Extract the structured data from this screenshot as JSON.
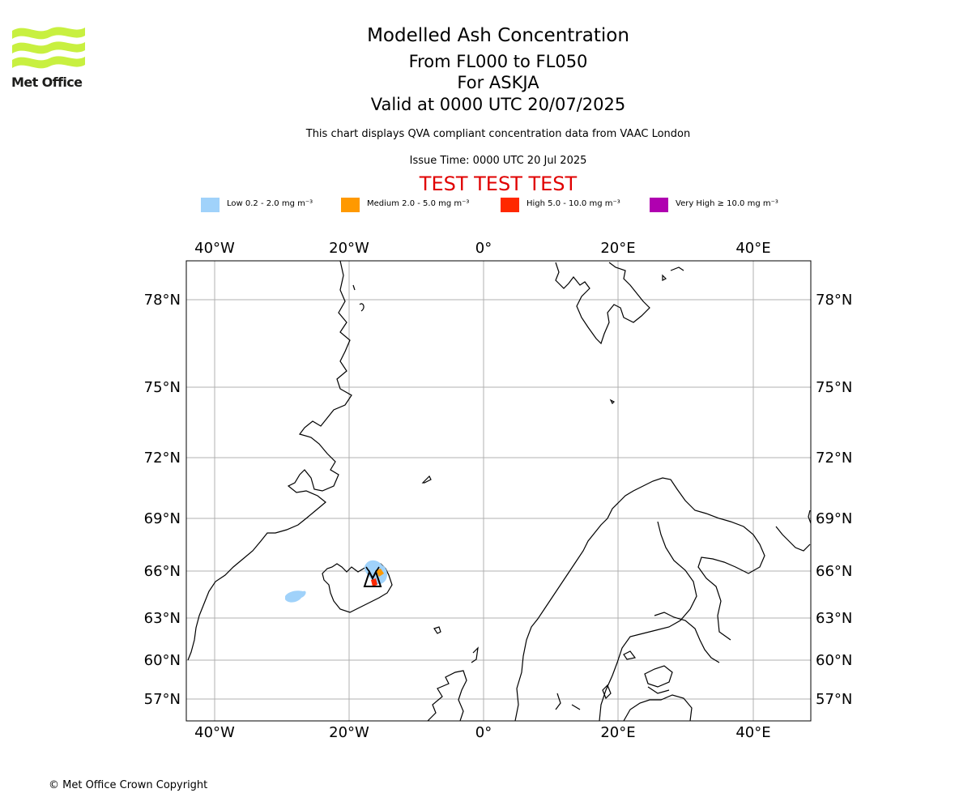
{
  "logo": {
    "text": "Met Office",
    "icon": "met-office-wave-icon",
    "color": "#c8f040"
  },
  "header": {
    "title": "Modelled Ash Concentration",
    "line2": "From FL000 to FL050",
    "line3": "For ASKJA",
    "line4": "Valid at 0000 UTC 20/07/2025",
    "description": "This chart displays QVA compliant concentration data from VAAC London",
    "issue_time": "Issue Time: 0000 UTC 20 Jul 2025",
    "test_banner": "TEST TEST TEST"
  },
  "legend": [
    {
      "label": "Low 0.2 - 2.0 mg m⁻³",
      "color": "#a0d2fa"
    },
    {
      "label": "Medium 2.0 - 5.0 mg m⁻³",
      "color": "#ff9900"
    },
    {
      "label": "High 5.0 - 10.0 mg m⁻³",
      "color": "#ff2800"
    },
    {
      "label": "Very High ≥ 10.0 mg m⁻³",
      "color": "#b000b0"
    }
  ],
  "map": {
    "lon_labels": [
      "40°W",
      "20°W",
      "0°",
      "20°E",
      "40°E"
    ],
    "lat_labels": [
      "78°N",
      "75°N",
      "72°N",
      "69°N",
      "66°N",
      "63°N",
      "60°N",
      "57°N"
    ],
    "volcano": "Askja",
    "volcano_icon": "volcano-icon"
  },
  "copyright": "© Met Office Crown Copyright"
}
